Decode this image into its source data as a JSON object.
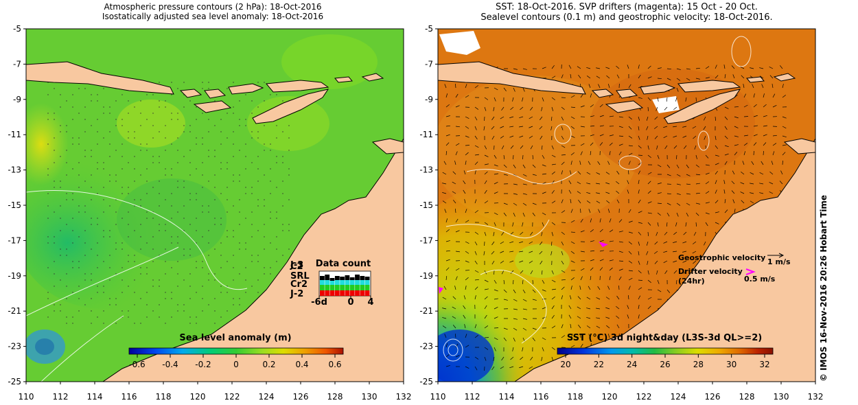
{
  "left_map": {
    "title_line1": "Atmospheric pressure contours (2 hPa): 18-Oct-2016",
    "title_line2": "Isostatically adjusted sea level anomaly: 18-Oct-2016",
    "colorbar_title": "Sea level anomaly (m)",
    "colorbar_ticks": [
      "-0.6",
      "-0.4",
      "-0.2",
      "0",
      "0.2",
      "0.4",
      "0.6"
    ],
    "data_count": {
      "title": "Data count",
      "satellites": [
        {
          "label": "J-3",
          "color": "#000000"
        },
        {
          "label": "C2",
          "color": "#000000"
        },
        {
          "label": "SRL",
          "color": "#22dddd"
        },
        {
          "label": "Cr2",
          "color": "#22cc22"
        },
        {
          "label": "J-2",
          "color": "#ee0000"
        }
      ],
      "x_ticks": [
        "-6d",
        "0",
        "4"
      ]
    }
  },
  "right_map": {
    "title_line1": "SST: 18-Oct-2016. SVP drifters (magenta): 15 Oct - 20 Oct.",
    "title_line2": "Sealevel contours (0.1 m) and geostrophic velocity: 18-Oct-2016.",
    "colorbar_title": "SST (°C) 3d night&day (L3S-3d QL>=2)",
    "colorbar_ticks": [
      "20",
      "22",
      "24",
      "26",
      "28",
      "30",
      "32"
    ],
    "legend": {
      "geostrophic_label": "Geostrophic velocity",
      "geostrophic_value": "1 m/s",
      "drifter_label_line1": "Drifter velocity",
      "drifter_label_line2": "(24hr)",
      "drifter_value": "0.5 m/s"
    }
  },
  "axes": {
    "y_ticks": [
      "-5",
      "-7",
      "-9",
      "-11",
      "-13",
      "-15",
      "-17",
      "-19",
      "-21",
      "-23",
      "-25"
    ],
    "x_ticks": [
      "110",
      "112",
      "114",
      "116",
      "118",
      "120",
      "122",
      "124",
      "126",
      "128",
      "130",
      "132"
    ]
  },
  "credit": "© IMOS 16-Nov-2016 20:26 Hobart Time",
  "colors": {
    "land": "#f8c8a0",
    "sla_colorbar": [
      "#000099",
      "#0044ee",
      "#00aaee",
      "#00cc77",
      "#33cc33",
      "#99dd22",
      "#dddd00",
      "#eea000",
      "#ee5500",
      "#aa1100"
    ],
    "sst_colorbar": [
      "#000088",
      "#0033dd",
      "#0099ee",
      "#00bbaa",
      "#22bb44",
      "#88cc22",
      "#dddd00",
      "#eeaa00",
      "#dd6600",
      "#bb2200",
      "#881100"
    ]
  }
}
